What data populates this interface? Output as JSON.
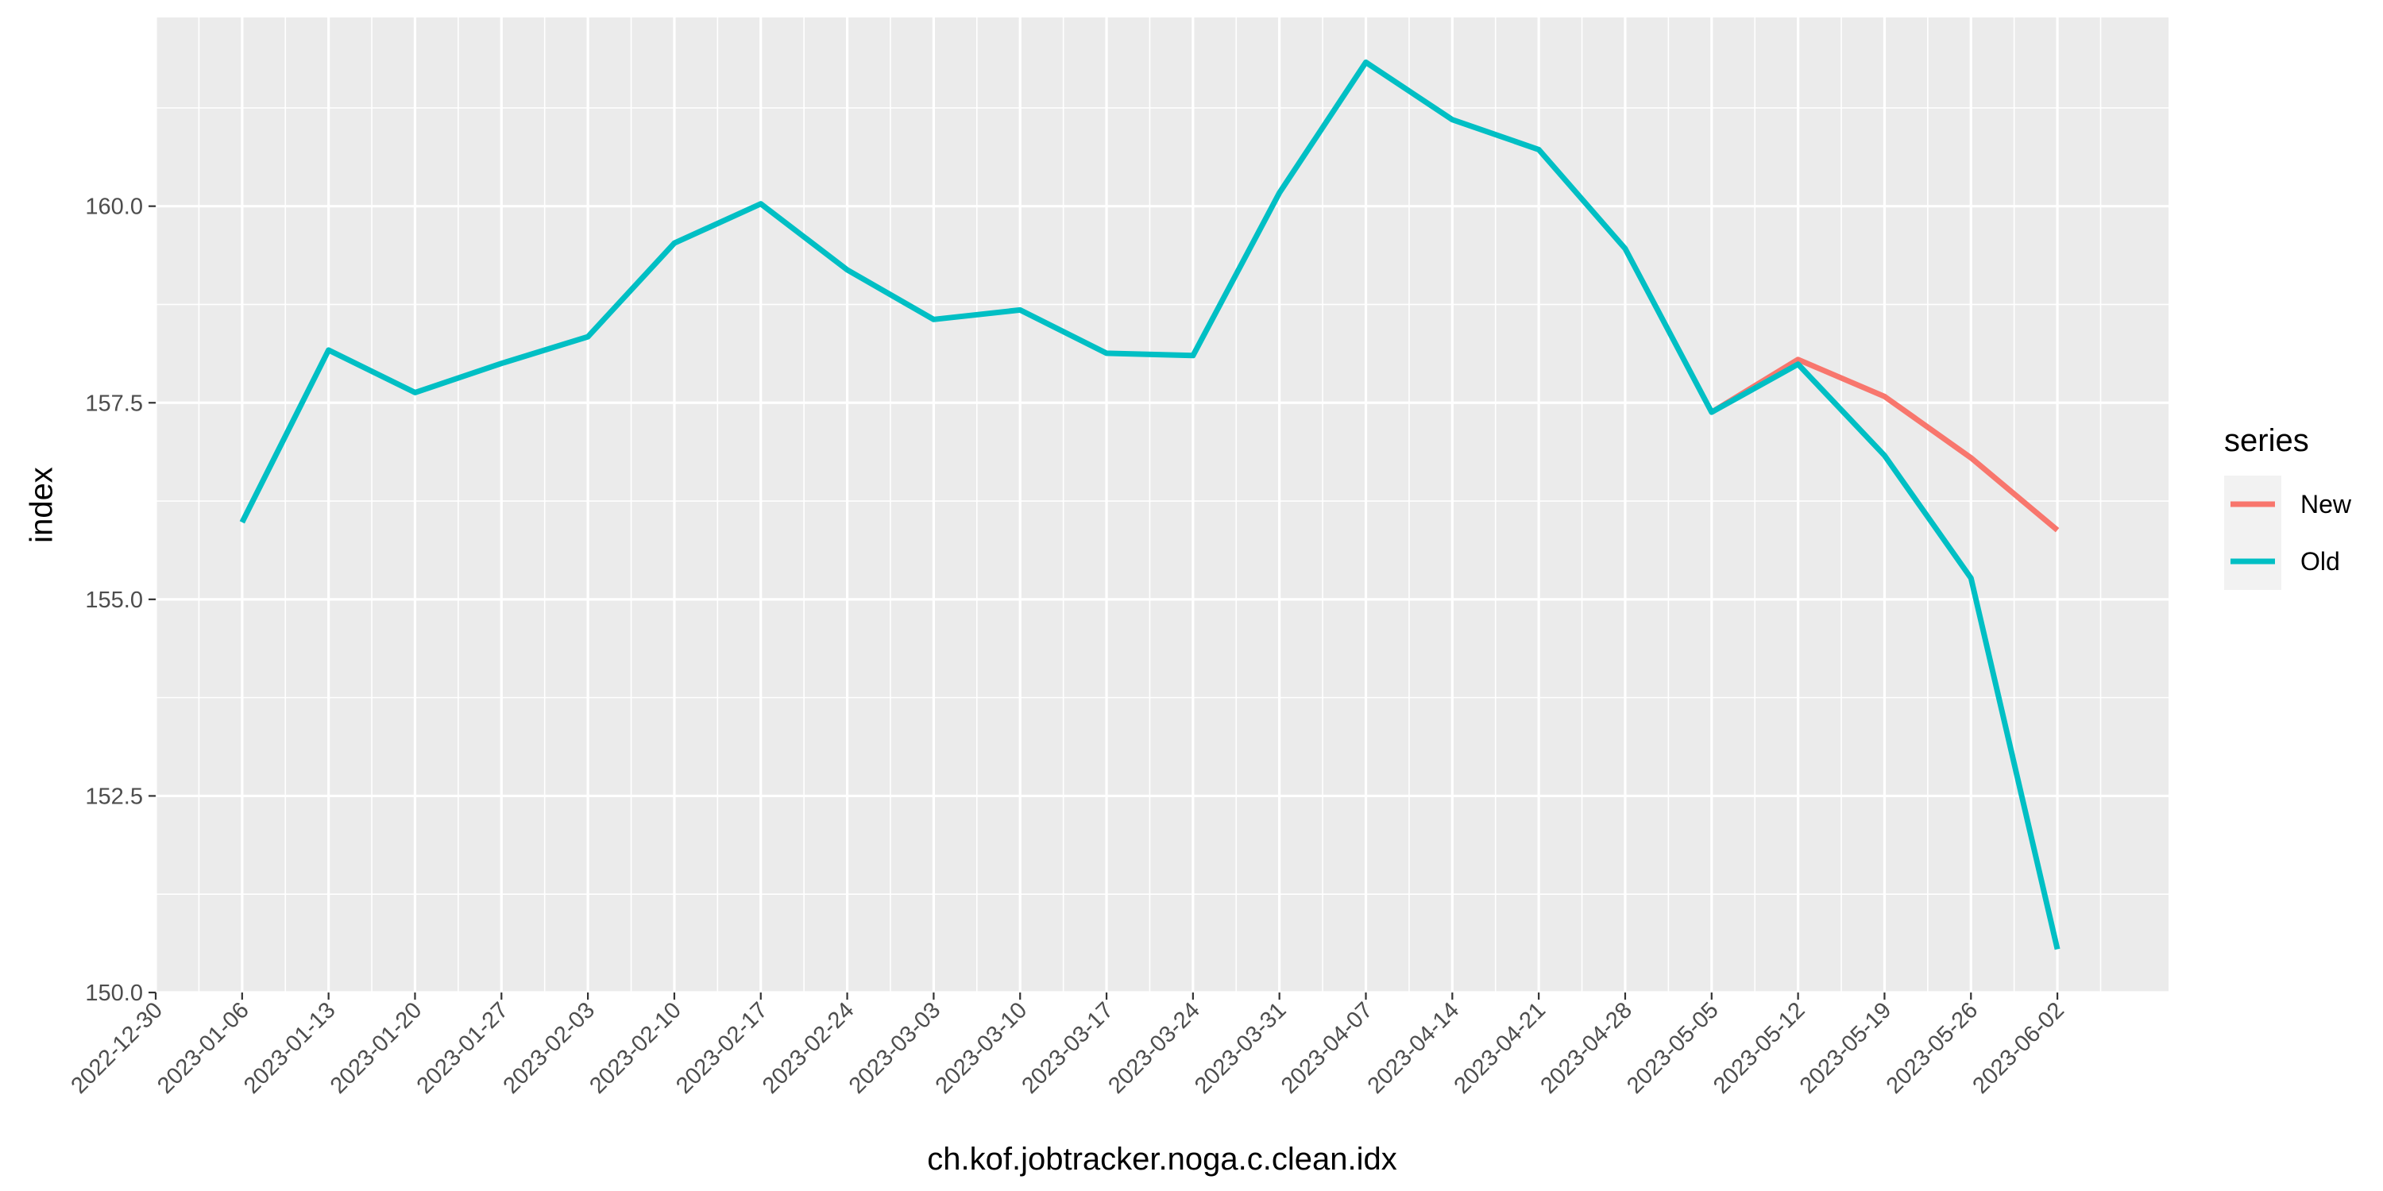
{
  "chart_data": {
    "type": "line",
    "title": "",
    "xlabel": "ch.kof.jobtracker.noga.c.clean.idx",
    "ylabel": "index",
    "x": [
      "2023-01-06",
      "2023-01-13",
      "2023-01-20",
      "2023-01-27",
      "2023-02-03",
      "2023-02-10",
      "2023-02-17",
      "2023-02-24",
      "2023-03-03",
      "2023-03-10",
      "2023-03-17",
      "2023-03-24",
      "2023-03-31",
      "2023-04-07",
      "2023-04-14",
      "2023-04-21",
      "2023-04-28",
      "2023-05-05",
      "2023-05-12",
      "2023-05-19",
      "2023-05-26",
      "2023-06-02"
    ],
    "x_ticks": [
      "2022-12-30",
      "2023-01-06",
      "2023-01-13",
      "2023-01-20",
      "2023-01-27",
      "2023-02-03",
      "2023-02-10",
      "2023-02-17",
      "2023-02-24",
      "2023-03-03",
      "2023-03-10",
      "2023-03-17",
      "2023-03-24",
      "2023-03-31",
      "2023-04-07",
      "2023-04-14",
      "2023-04-21",
      "2023-04-28",
      "2023-05-05",
      "2023-05-12",
      "2023-05-19",
      "2023-05-26",
      "2023-06-02"
    ],
    "xlim": [
      "2022-12-30",
      "2023-06-11"
    ],
    "y_ticks": [
      "150.0",
      "152.5",
      "155.0",
      "157.5",
      "160.0"
    ],
    "ylim": [
      150.0,
      162.4
    ],
    "grid": true,
    "legend": {
      "title": "series",
      "position": "right"
    },
    "series": [
      {
        "name": "New",
        "color": "#F8766D",
        "x": [
          "2023-05-05",
          "2023-05-12",
          "2023-05-19",
          "2023-05-26",
          "2023-06-02"
        ],
        "values": [
          157.38,
          158.05,
          157.58,
          156.8,
          155.88
        ]
      },
      {
        "name": "Old",
        "color": "#00BFC4",
        "x": [
          "2023-01-06",
          "2023-01-13",
          "2023-01-20",
          "2023-01-27",
          "2023-02-03",
          "2023-02-10",
          "2023-02-17",
          "2023-02-24",
          "2023-03-03",
          "2023-03-10",
          "2023-03-17",
          "2023-03-24",
          "2023-03-31",
          "2023-04-07",
          "2023-04-14",
          "2023-04-21",
          "2023-04-28",
          "2023-05-05",
          "2023-05-12",
          "2023-05-19",
          "2023-05-26",
          "2023-06-02"
        ],
        "values": [
          155.98,
          158.17,
          157.63,
          158.0,
          158.34,
          159.53,
          160.03,
          159.19,
          158.56,
          158.68,
          158.13,
          158.1,
          160.17,
          161.83,
          161.1,
          160.72,
          159.46,
          157.38,
          157.99,
          156.83,
          155.27,
          150.55
        ]
      }
    ]
  }
}
